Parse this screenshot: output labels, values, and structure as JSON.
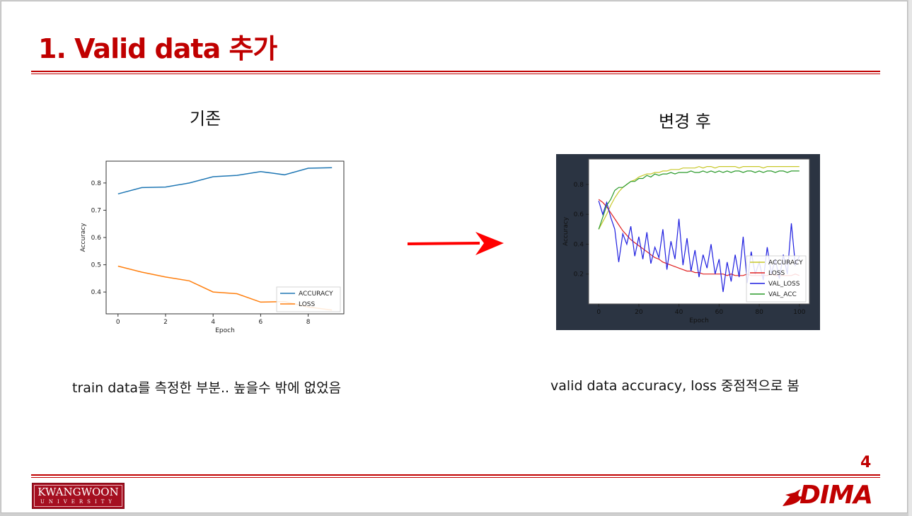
{
  "slide": {
    "title": "1. Valid data 추가",
    "page_number": "4"
  },
  "left": {
    "heading": "기존",
    "caption": "train data를 측정한 부분.. 높을수 밖에 없었음"
  },
  "right": {
    "heading": "변경 후",
    "caption": "valid data accuracy, loss 중점적으로 봄"
  },
  "footer": {
    "university_logo": "KWANGWOON",
    "university_logo_sub": "UNIVERSITY",
    "lab_logo": "DIMA"
  },
  "colors": {
    "accent": "#c00000",
    "dark_chart_bg": "#2b3442"
  },
  "chart_data": [
    {
      "type": "line",
      "xlabel": "Epoch",
      "ylabel": "Accuracy",
      "xlim": [
        -0.5,
        9.5
      ],
      "ylim": [
        0.32,
        0.88
      ],
      "xticks": [
        0,
        2,
        4,
        6,
        8
      ],
      "yticks": [
        0.4,
        0.5,
        0.6,
        0.7,
        0.8
      ],
      "legend": "lower-right",
      "x": [
        0,
        1,
        2,
        3,
        4,
        5,
        6,
        7,
        8,
        9
      ],
      "series": [
        {
          "name": "ACCURACY",
          "color": "#1f77b4",
          "values": [
            0.76,
            0.783,
            0.785,
            0.8,
            0.823,
            0.828,
            0.842,
            0.83,
            0.854,
            0.856
          ]
        },
        {
          "name": "LOSS",
          "color": "#ff7f0e",
          "values": [
            0.495,
            0.473,
            0.455,
            0.441,
            0.4,
            0.394,
            0.363,
            0.365,
            0.345,
            0.334
          ]
        }
      ]
    },
    {
      "type": "line",
      "xlabel": "Epoch",
      "ylabel": "Accuracy",
      "xlim": [
        -5,
        105
      ],
      "ylim": [
        0.0,
        0.97
      ],
      "xticks": [
        0,
        20,
        40,
        60,
        80,
        100
      ],
      "yticks": [
        0.2,
        0.4,
        0.6,
        0.8
      ],
      "legend": "lower-right",
      "x": [
        0,
        2,
        4,
        6,
        8,
        10,
        12,
        14,
        16,
        18,
        20,
        22,
        24,
        26,
        28,
        30,
        32,
        34,
        36,
        38,
        40,
        42,
        44,
        46,
        48,
        50,
        52,
        54,
        56,
        58,
        60,
        62,
        64,
        66,
        68,
        70,
        72,
        74,
        76,
        78,
        80,
        82,
        84,
        86,
        88,
        90,
        92,
        94,
        96,
        98,
        100
      ],
      "series": [
        {
          "name": "ACCURACY",
          "color": "#c8c82a",
          "values": [
            0.5,
            0.55,
            0.6,
            0.66,
            0.71,
            0.75,
            0.78,
            0.8,
            0.82,
            0.83,
            0.85,
            0.86,
            0.87,
            0.87,
            0.88,
            0.88,
            0.89,
            0.89,
            0.9,
            0.9,
            0.9,
            0.91,
            0.91,
            0.91,
            0.91,
            0.92,
            0.91,
            0.92,
            0.92,
            0.91,
            0.92,
            0.92,
            0.92,
            0.92,
            0.92,
            0.91,
            0.92,
            0.92,
            0.92,
            0.92,
            0.92,
            0.91,
            0.92,
            0.92,
            0.92,
            0.92,
            0.92,
            0.92,
            0.92,
            0.92,
            0.92
          ]
        },
        {
          "name": "LOSS",
          "color": "#e02020",
          "values": [
            0.7,
            0.68,
            0.65,
            0.61,
            0.57,
            0.53,
            0.49,
            0.46,
            0.43,
            0.41,
            0.39,
            0.37,
            0.35,
            0.33,
            0.31,
            0.3,
            0.28,
            0.27,
            0.26,
            0.25,
            0.24,
            0.23,
            0.22,
            0.22,
            0.21,
            0.21,
            0.2,
            0.2,
            0.2,
            0.2,
            0.2,
            0.2,
            0.19,
            0.2,
            0.19,
            0.19,
            0.19,
            0.2,
            0.19,
            0.19,
            0.19,
            0.19,
            0.19,
            0.2,
            0.19,
            0.19,
            0.19,
            0.19,
            0.19,
            0.2,
            0.19
          ]
        },
        {
          "name": "VAL_LOSS",
          "color": "#1f1fe0",
          "values": [
            0.69,
            0.6,
            0.68,
            0.58,
            0.5,
            0.28,
            0.47,
            0.4,
            0.52,
            0.32,
            0.45,
            0.3,
            0.48,
            0.27,
            0.38,
            0.31,
            0.5,
            0.23,
            0.42,
            0.3,
            0.57,
            0.26,
            0.44,
            0.22,
            0.36,
            0.18,
            0.33,
            0.24,
            0.4,
            0.2,
            0.3,
            0.08,
            0.28,
            0.15,
            0.33,
            0.18,
            0.45,
            0.14,
            0.35,
            0.2,
            0.28,
            0.16,
            0.38,
            0.2,
            0.3,
            0.17,
            0.33,
            0.2,
            0.54,
            0.26,
            0.32
          ]
        },
        {
          "name": "VAL_ACC",
          "color": "#2a9a2a",
          "values": [
            0.5,
            0.58,
            0.66,
            0.7,
            0.76,
            0.78,
            0.78,
            0.8,
            0.82,
            0.82,
            0.84,
            0.84,
            0.86,
            0.85,
            0.87,
            0.86,
            0.87,
            0.87,
            0.88,
            0.87,
            0.88,
            0.88,
            0.88,
            0.89,
            0.88,
            0.88,
            0.89,
            0.88,
            0.89,
            0.88,
            0.89,
            0.88,
            0.89,
            0.88,
            0.89,
            0.89,
            0.88,
            0.89,
            0.89,
            0.88,
            0.89,
            0.88,
            0.89,
            0.89,
            0.88,
            0.89,
            0.89,
            0.88,
            0.89,
            0.89,
            0.89
          ]
        }
      ]
    }
  ]
}
